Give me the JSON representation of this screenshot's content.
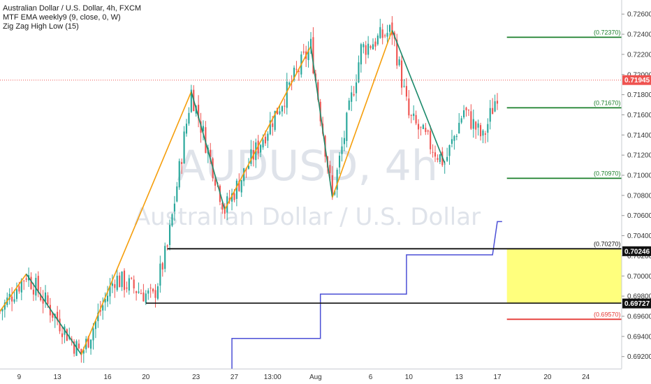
{
  "legend": {
    "title": "Australian Dollar / U.S. Dollar, 4h, FXCM",
    "indicator1": "MTF EMA weekly9 (9, close, 0, W)",
    "indicator2": "Zig Zag High Low (15)"
  },
  "watermark": {
    "symbol": "AUDUSD, 4h",
    "name": "Australian Dollar / U.S. Dollar"
  },
  "colors": {
    "up": "#26a69a",
    "down": "#ef5350",
    "zig_up": "#f59e0b",
    "zig_down": "#1b8a6b",
    "ema": "#4b4fd6",
    "green_level": "#1a7f2a",
    "red_level": "#e53935",
    "zone": "#ffff66",
    "price_tag": "#ef5350",
    "black_tag": "#111111"
  },
  "chart_data": {
    "type": "candlestick",
    "title": "Australian Dollar / U.S. Dollar, 4h, FXCM",
    "y_axis": {
      "ylim": [
        0.6908,
        0.7274
      ],
      "ticks": [
        "0.72600",
        "0.72400",
        "0.72200",
        "0.72000",
        "0.71800",
        "0.71600",
        "0.71400",
        "0.71200",
        "0.71000",
        "0.70800",
        "0.70600",
        "0.70400",
        "0.70200",
        "0.70000",
        "0.69800",
        "0.69600",
        "0.69400",
        "0.69200"
      ]
    },
    "x_axis": {
      "range": [
        0,
        260
      ],
      "ticks": [
        {
          "label": "9",
          "x": 8
        },
        {
          "label": "13",
          "x": 24
        },
        {
          "label": "16",
          "x": 45
        },
        {
          "label": "20",
          "x": 61
        },
        {
          "label": "23",
          "x": 82
        },
        {
          "label": "27",
          "x": 98
        },
        {
          "label": "13:00",
          "x": 114
        },
        {
          "label": "Aug",
          "x": 132
        },
        {
          "label": "6",
          "x": 155
        },
        {
          "label": "10",
          "x": 171
        },
        {
          "label": "13",
          "x": 192
        },
        {
          "label": "17",
          "x": 208
        },
        {
          "label": "20",
          "x": 229
        },
        {
          "label": "24",
          "x": 245
        }
      ]
    },
    "price_anchors": [
      [
        0,
        0.6965
      ],
      [
        11,
        0.7002
      ],
      [
        34,
        0.6922
      ],
      [
        48,
        0.6998
      ],
      [
        64,
        0.6978
      ],
      [
        70,
        0.7028
      ],
      [
        80,
        0.7183
      ],
      [
        94,
        0.7066
      ],
      [
        130,
        0.7228
      ],
      [
        139,
        0.7078
      ],
      [
        151,
        0.7225
      ],
      [
        164,
        0.7244
      ],
      [
        171,
        0.7158
      ],
      [
        186,
        0.7112
      ],
      [
        194,
        0.7165
      ],
      [
        202,
        0.7136
      ],
      [
        208,
        0.7182
      ]
    ],
    "zigzag": [
      [
        0,
        0.6965
      ],
      [
        11,
        0.7002
      ],
      [
        34,
        0.6922
      ],
      [
        80,
        0.7183
      ],
      [
        94,
        0.7066
      ],
      [
        130,
        0.7228
      ],
      [
        139,
        0.7078
      ],
      [
        164,
        0.7244
      ],
      [
        186,
        0.7112
      ]
    ],
    "ema_steps": [
      [
        97,
        0.6908
      ],
      [
        97,
        0.6938
      ],
      [
        134,
        0.6938
      ],
      [
        134,
        0.6982
      ],
      [
        170,
        0.6982
      ],
      [
        170,
        0.7021
      ],
      [
        206,
        0.7021
      ],
      [
        208,
        0.7054
      ],
      [
        210,
        0.7054
      ]
    ],
    "levels": [
      {
        "label": "(0.72370)",
        "value": 0.7237,
        "color": "green",
        "x_start": 212
      },
      {
        "label": "(0.71670)",
        "value": 0.7167,
        "color": "green",
        "x_start": 212
      },
      {
        "label": "(0.70970)",
        "value": 0.7097,
        "color": "green",
        "x_start": 212
      },
      {
        "label": "(0.70270)",
        "value": 0.7027,
        "color": "black",
        "x_start": 70
      },
      {
        "label": "(0.69570)",
        "value": 0.6957,
        "color": "red",
        "x_start": 212
      }
    ],
    "support_line": {
      "value": 0.6973,
      "x_start": 61
    },
    "zone": {
      "top": 0.7027,
      "bottom": 0.6973,
      "x_start": 212
    },
    "current_price": {
      "label": "0.71945",
      "value": 0.71945
    },
    "price_tags": [
      {
        "label": "0.70246",
        "value": 0.70246
      },
      {
        "label": "0.69727",
        "value": 0.69727
      }
    ]
  }
}
